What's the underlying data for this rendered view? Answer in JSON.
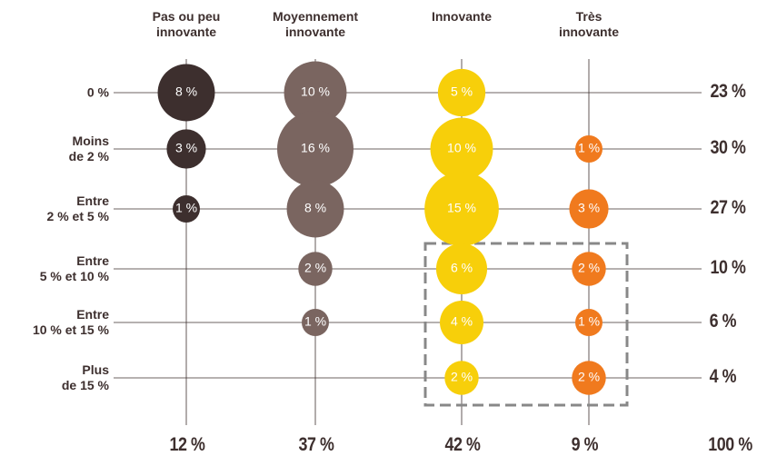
{
  "chart_data": {
    "type": "bubble-matrix",
    "columns": [
      "Pas ou peu\ninnovante",
      "Moyennement\ninnovante",
      "Innovante",
      "Très\ninnovante"
    ],
    "rows": [
      "0 %",
      "Moins\nde 2 %",
      "Entre\n2 % et 5 %",
      "Entre\n5 % et 10 %",
      "Entre\n10 % et 15 %",
      "Plus\nde 15 %"
    ],
    "series": [
      {
        "name": "Pas ou peu\ninnovante",
        "color": "#3d2f2e",
        "values": [
          8,
          3,
          1,
          null,
          null,
          null
        ],
        "value_labels": [
          "8 %",
          "3 %",
          "1 %",
          null,
          null,
          null
        ]
      },
      {
        "name": "Moyennement\ninnovante",
        "color": "#7a6560",
        "values": [
          10,
          16,
          8,
          2,
          1,
          null
        ],
        "value_labels": [
          "10 %",
          "16 %",
          "8 %",
          "2 %",
          "1 %",
          null
        ]
      },
      {
        "name": "Innovante",
        "color": "#f7cf0a",
        "values": [
          5,
          10,
          15,
          6,
          4,
          2
        ],
        "value_labels": [
          "5 %",
          "10 %",
          "15 %",
          "6 %",
          "4 %",
          "2 %"
        ]
      },
      {
        "name": "Très\ninnovante",
        "color": "#f07a1e",
        "values": [
          null,
          1,
          3,
          2,
          1,
          2
        ],
        "value_labels": [
          null,
          "1 %",
          "3 %",
          "2 %",
          "1 %",
          "2 %"
        ]
      }
    ],
    "row_totals": {
      "values": [
        23,
        30,
        27,
        10,
        6,
        4
      ],
      "value_labels": [
        "23 %",
        "30 %",
        "27 %",
        "10 %",
        "6 %",
        "4 %"
      ]
    },
    "column_totals": {
      "values": [
        12,
        37,
        42,
        9
      ],
      "value_labels": [
        "12 %",
        "37 %",
        "42 %",
        "9 %"
      ]
    },
    "grand_total": {
      "value": 100,
      "label": "100 %"
    }
  }
}
